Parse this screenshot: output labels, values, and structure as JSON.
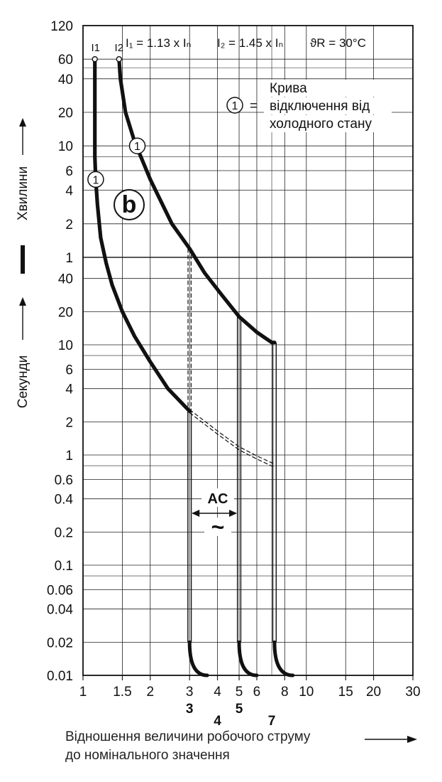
{
  "chart_data": {
    "type": "line",
    "title": "",
    "header_formulas": {
      "i1": "I₁ = 1.13 x Iₙ",
      "i2": "I₂ = 1.45 x Iₙ",
      "theta": "ϑR = 30°C"
    },
    "curve_markers": {
      "i1": "I1",
      "i2": "I2"
    },
    "curve_label": "b",
    "legend": {
      "symbol": "1",
      "equals": "=",
      "lines": [
        "Крива",
        "відключення від",
        "холодного стану"
      ]
    },
    "ac_label": "AC",
    "ac_symbol": "~",
    "ylabel_minutes": "Хвилини",
    "ylabel_seconds": "Секунди",
    "ylabel_divider": "I",
    "xlabel": [
      "Відношення величини робочого струму",
      "до номінального значення"
    ],
    "x_axis": {
      "scale": "log",
      "range": [
        1,
        30
      ],
      "ticks": [
        {
          "v": 1,
          "label": "1"
        },
        {
          "v": 1.5,
          "label": "1.5"
        },
        {
          "v": 2,
          "label": "2"
        },
        {
          "v": 3,
          "label": "3"
        },
        {
          "v": 4,
          "label": "4"
        },
        {
          "v": 5,
          "label": "5"
        },
        {
          "v": 6,
          "label": "6"
        },
        {
          "v": 8,
          "label": "8"
        },
        {
          "v": 10,
          "label": "10"
        },
        {
          "v": 15,
          "label": "15"
        },
        {
          "v": 20,
          "label": "20"
        },
        {
          "v": 30,
          "label": "30"
        }
      ],
      "bold_ticks": [
        {
          "v": 3,
          "label": "3",
          "row": 1
        },
        {
          "v": 4,
          "label": "4",
          "row": 2
        },
        {
          "v": 5,
          "label": "5",
          "row": 1
        },
        {
          "v": 7,
          "label": "7",
          "row": 2
        }
      ]
    },
    "y_axis_minutes": {
      "unit": "min",
      "scale": "log",
      "range": [
        1,
        120
      ],
      "ticks": [
        {
          "v": 120,
          "label": "120"
        },
        {
          "v": 60,
          "label": "60"
        },
        {
          "v": 40,
          "label": "40"
        },
        {
          "v": 20,
          "label": "20"
        },
        {
          "v": 10,
          "label": "10"
        },
        {
          "v": 6,
          "label": "6"
        },
        {
          "v": 4,
          "label": "4"
        },
        {
          "v": 2,
          "label": "2"
        },
        {
          "v": 1,
          "label": "1"
        }
      ]
    },
    "y_axis_seconds": {
      "unit": "s",
      "scale": "log",
      "range": [
        0.01,
        60
      ],
      "ticks": [
        {
          "v": 40,
          "label": "40"
        },
        {
          "v": 20,
          "label": "20"
        },
        {
          "v": 10,
          "label": "10"
        },
        {
          "v": 6,
          "label": "6"
        },
        {
          "v": 4,
          "label": "4"
        },
        {
          "v": 2,
          "label": "2"
        },
        {
          "v": 1,
          "label": "1"
        },
        {
          "v": 0.6,
          "label": "0.6"
        },
        {
          "v": 0.4,
          "label": "0.4"
        },
        {
          "v": 0.2,
          "label": "0.2"
        },
        {
          "v": 0.1,
          "label": "0.1"
        },
        {
          "v": 0.06,
          "label": "0.06"
        },
        {
          "v": 0.04,
          "label": "0.04"
        },
        {
          "v": 0.02,
          "label": "0.02"
        },
        {
          "v": 0.01,
          "label": "0.01"
        }
      ]
    },
    "series": [
      {
        "role": "lower bound",
        "style": "solid",
        "points": [
          {
            "x": 1.13,
            "t_min": 60
          },
          {
            "x": 1.13,
            "t_min": 20
          },
          {
            "x": 1.13,
            "t_min": 8
          },
          {
            "x": 1.14,
            "t_min": 5
          },
          {
            "x": 1.16,
            "t_min": 3
          },
          {
            "x": 1.2,
            "t_min": 1.5
          },
          {
            "x": 1.27,
            "t_sec": 55
          },
          {
            "x": 1.35,
            "t_sec": 35
          },
          {
            "x": 1.5,
            "t_sec": 20
          },
          {
            "x": 1.7,
            "t_sec": 12
          },
          {
            "x": 2,
            "t_sec": 7
          },
          {
            "x": 2.4,
            "t_sec": 4
          },
          {
            "x": 3,
            "t_sec": 2.5
          }
        ]
      },
      {
        "role": "lower bound extension",
        "style": "double-dashed",
        "points": [
          {
            "x": 3,
            "t_sec": 2.5
          },
          {
            "x": 4,
            "t_sec": 1.6
          },
          {
            "x": 5,
            "t_sec": 1.15
          },
          {
            "x": 6,
            "t_sec": 0.95
          },
          {
            "x": 7.2,
            "t_sec": 0.8
          }
        ]
      },
      {
        "role": "upper bound",
        "style": "solid",
        "points": [
          {
            "x": 1.45,
            "t_min": 60
          },
          {
            "x": 1.47,
            "t_min": 40
          },
          {
            "x": 1.55,
            "t_min": 20
          },
          {
            "x": 1.7,
            "t_min": 11
          },
          {
            "x": 2,
            "t_min": 5
          },
          {
            "x": 2.5,
            "t_min": 2
          },
          {
            "x": 3,
            "t_min": 1.2
          },
          {
            "x": 3.5,
            "t_sec": 45
          },
          {
            "x": 4.2,
            "t_sec": 28
          },
          {
            "x": 5,
            "t_sec": 18
          },
          {
            "x": 6,
            "t_sec": 13
          },
          {
            "x": 7,
            "t_sec": 10.5
          },
          {
            "x": 7.2,
            "t_sec": 10.5
          }
        ]
      },
      {
        "role": "upper bound extension",
        "style": "double-dashed",
        "points": [
          {
            "x": 3,
            "t_min": 1.2
          },
          {
            "x": 3,
            "t_sec": 2.5
          }
        ]
      }
    ],
    "instantaneous_lines": [
      {
        "x": 3,
        "t_top_sec": 2.5,
        "bend": [
          {
            "x": 3,
            "t_sec": 0.02
          },
          {
            "x": 3.1,
            "t_sec": 0.0135
          },
          {
            "x": 3.6,
            "t_sec": 0.01
          }
        ]
      },
      {
        "x": 5,
        "t_top_sec": 18,
        "bend": [
          {
            "x": 5,
            "t_sec": 0.02
          },
          {
            "x": 5.15,
            "t_sec": 0.0135
          },
          {
            "x": 6,
            "t_sec": 0.01
          }
        ]
      },
      {
        "x": 7.2,
        "t_top_sec": 10.5,
        "bend": [
          {
            "x": 7.2,
            "t_sec": 0.02
          },
          {
            "x": 7.45,
            "t_sec": 0.0135
          },
          {
            "x": 8.7,
            "t_sec": 0.01
          }
        ]
      }
    ],
    "markers": [
      {
        "label": "1",
        "x": 1.14,
        "t_min": 5
      },
      {
        "label": "1",
        "x": 1.75,
        "t_min": 10
      }
    ],
    "grid": true,
    "colors": {
      "line": "#111111",
      "grid": "#222222",
      "background": "#ffffff"
    }
  }
}
